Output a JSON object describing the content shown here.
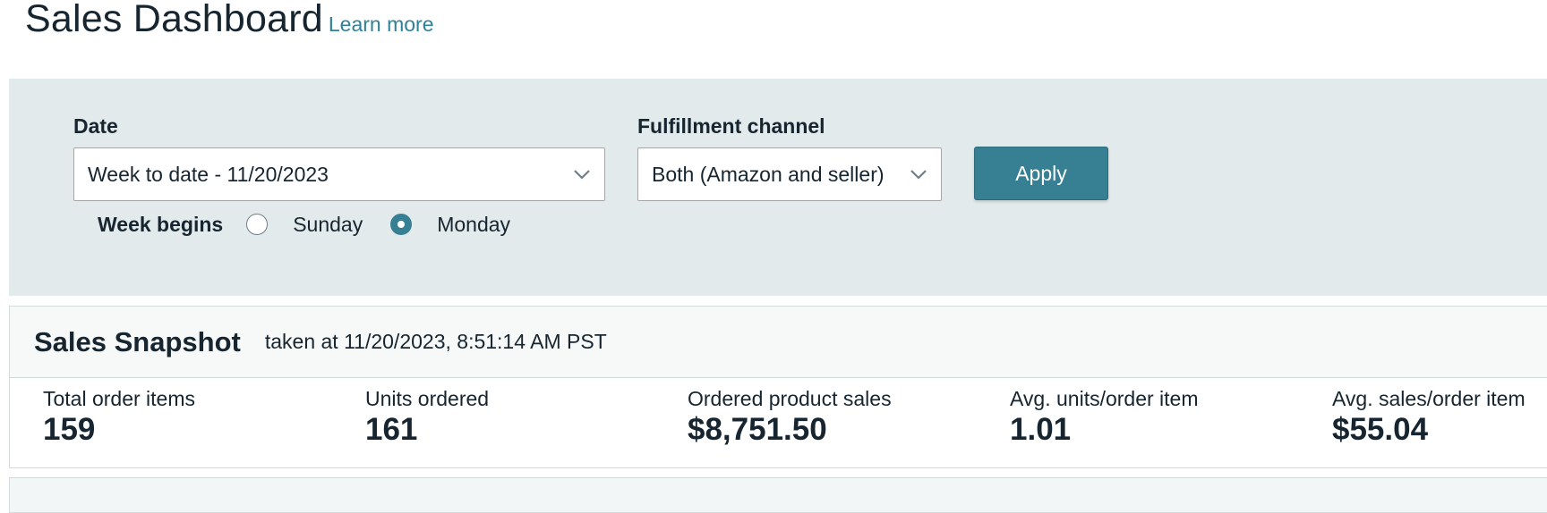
{
  "header": {
    "title": "Sales Dashboard",
    "learn_more": "Learn more"
  },
  "filters": {
    "date": {
      "label": "Date",
      "value": "Week to date - 11/20/2023",
      "icon": "chevron-down-icon"
    },
    "fulfillment": {
      "label": "Fulfillment channel",
      "value": "Both (Amazon and seller)",
      "icon": "chevron-down-icon"
    },
    "apply_label": "Apply",
    "week_begins": {
      "label": "Week begins",
      "options": [
        {
          "label": "Sunday",
          "checked": false
        },
        {
          "label": "Monday",
          "checked": true
        }
      ]
    }
  },
  "snapshot": {
    "title": "Sales Snapshot",
    "taken_at": "taken at 11/20/2023, 8:51:14 AM PST",
    "metrics": [
      {
        "label": "Total order items",
        "value": "159"
      },
      {
        "label": "Units ordered",
        "value": "161"
      },
      {
        "label": "Ordered product sales",
        "value": "$8,751.50"
      },
      {
        "label": "Avg. units/order item",
        "value": "1.01"
      },
      {
        "label": "Avg. sales/order item",
        "value": "$55.04"
      }
    ]
  },
  "colors": {
    "accent": "#377f93",
    "link": "#2e8196",
    "panel_bg": "#e3eaec",
    "text": "#16252f"
  }
}
